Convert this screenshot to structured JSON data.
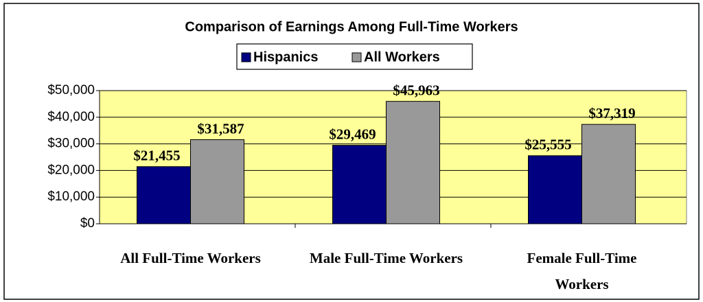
{
  "chart_data": {
    "type": "bar",
    "title": "Comparison of Earnings Among Full-Time Workers",
    "categories": [
      "All Full-Time Workers",
      "Male Full-Time Workers",
      "Female Full-Time Workers"
    ],
    "series": [
      {
        "name": "Hispanics",
        "color": "#000080",
        "values": [
          21455,
          29469,
          25555
        ],
        "value_labels": [
          "$21,455",
          "$29,469",
          "$25,555"
        ]
      },
      {
        "name": "All Workers",
        "color": "#999999",
        "values": [
          31587,
          45963,
          37319
        ],
        "value_labels": [
          "$31,587",
          "$45,963",
          "$37,319"
        ]
      }
    ],
    "ylim": [
      0,
      50000
    ],
    "yticks": [
      {
        "value": 0,
        "label": "$0"
      },
      {
        "value": 10000,
        "label": "$10,000"
      },
      {
        "value": 20000,
        "label": "$20,000"
      },
      {
        "value": 30000,
        "label": "$30,000"
      },
      {
        "value": 40000,
        "label": "$40,000"
      },
      {
        "value": 50000,
        "label": "$50,000"
      }
    ],
    "grid": true,
    "legend": "top",
    "plot_background": "#ffff99"
  }
}
